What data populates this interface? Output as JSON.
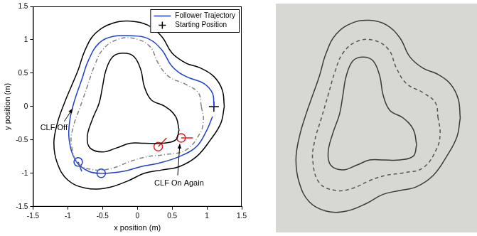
{
  "chart_data": [
    {
      "type": "line",
      "x_label": "x position (m)",
      "y_label": "y position (m)",
      "xlim": [
        -1.5,
        1.5
      ],
      "xticks": [
        -1.5,
        -1,
        -0.5,
        0,
        0.5,
        1,
        1.5
      ],
      "ylim": [
        -1.5,
        1.5
      ],
      "yticks": [
        -1.5,
        -1,
        -0.5,
        0,
        0.5,
        1,
        1.5
      ],
      "grid": false,
      "legend": "upper right",
      "series": [
        {
          "color": "#000000",
          "line_style": "solid",
          "marker": "none",
          "points": [
            [
              1.25,
              0.0
            ],
            [
              1.22,
              0.25
            ],
            [
              1.1,
              0.45
            ],
            [
              0.9,
              0.58
            ],
            [
              0.7,
              0.65
            ],
            [
              0.5,
              0.8
            ],
            [
              0.35,
              1.05
            ],
            [
              0.15,
              1.22
            ],
            [
              -0.1,
              1.28
            ],
            [
              -0.35,
              1.25
            ],
            [
              -0.6,
              1.1
            ],
            [
              -0.75,
              0.85
            ],
            [
              -0.85,
              0.55
            ],
            [
              -0.95,
              0.3
            ],
            [
              -1.05,
              0.05
            ],
            [
              -1.15,
              -0.25
            ],
            [
              -1.2,
              -0.55
            ],
            [
              -1.15,
              -0.85
            ],
            [
              -1.0,
              -1.1
            ],
            [
              -0.75,
              -1.22
            ],
            [
              -0.45,
              -1.22
            ],
            [
              -0.15,
              -1.12
            ],
            [
              0.1,
              -1.0
            ],
            [
              0.35,
              -0.95
            ],
            [
              0.6,
              -0.9
            ],
            [
              0.85,
              -0.75
            ],
            [
              1.05,
              -0.5
            ],
            [
              1.2,
              -0.25
            ],
            [
              1.25,
              0.0
            ]
          ]
        },
        {
          "color": "#000000",
          "line_style": "solid",
          "marker": "none",
          "points": [
            [
              0.6,
              -0.35
            ],
            [
              0.55,
              -0.15
            ],
            [
              0.4,
              0.0
            ],
            [
              0.2,
              0.1
            ],
            [
              0.1,
              0.3
            ],
            [
              0.05,
              0.55
            ],
            [
              -0.05,
              0.75
            ],
            [
              -0.2,
              0.8
            ],
            [
              -0.35,
              0.75
            ],
            [
              -0.45,
              0.55
            ],
            [
              -0.5,
              0.3
            ],
            [
              -0.55,
              0.05
            ],
            [
              -0.65,
              -0.2
            ],
            [
              -0.72,
              -0.45
            ],
            [
              -0.68,
              -0.62
            ],
            [
              -0.5,
              -0.68
            ],
            [
              -0.3,
              -0.62
            ],
            [
              -0.1,
              -0.55
            ],
            [
              0.1,
              -0.55
            ],
            [
              0.35,
              -0.55
            ],
            [
              0.55,
              -0.5
            ],
            [
              0.6,
              -0.35
            ]
          ]
        },
        {
          "color": "#808080",
          "line_style": "dashdot",
          "marker": "none",
          "points": [
            [
              0.92,
              0.0
            ],
            [
              0.88,
              0.2
            ],
            [
              0.7,
              0.33
            ],
            [
              0.45,
              0.45
            ],
            [
              0.3,
              0.65
            ],
            [
              0.18,
              0.9
            ],
            [
              -0.05,
              1.02
            ],
            [
              -0.3,
              1.0
            ],
            [
              -0.5,
              0.85
            ],
            [
              -0.62,
              0.6
            ],
            [
              -0.72,
              0.3
            ],
            [
              -0.82,
              0.0
            ],
            [
              -0.92,
              -0.3
            ],
            [
              -0.95,
              -0.55
            ],
            [
              -0.85,
              -0.85
            ],
            [
              -0.6,
              -0.95
            ],
            [
              -0.35,
              -0.92
            ],
            [
              -0.1,
              -0.82
            ],
            [
              0.15,
              -0.75
            ],
            [
              0.4,
              -0.72
            ],
            [
              0.7,
              -0.65
            ],
            [
              0.9,
              -0.4
            ],
            [
              0.95,
              -0.2
            ],
            [
              0.92,
              0.0
            ]
          ]
        },
        {
          "name": "Follower Trajectory",
          "color": "#1f3fd0",
          "line_style": "solid",
          "marker": "none",
          "points": [
            [
              1.1,
              0.0
            ],
            [
              1.08,
              0.2
            ],
            [
              0.95,
              0.35
            ],
            [
              0.7,
              0.45
            ],
            [
              0.5,
              0.6
            ],
            [
              0.35,
              0.85
            ],
            [
              0.15,
              1.02
            ],
            [
              -0.1,
              1.06
            ],
            [
              -0.35,
              1.05
            ],
            [
              -0.55,
              0.95
            ],
            [
              -0.7,
              0.7
            ],
            [
              -0.8,
              0.4
            ],
            [
              -0.9,
              0.1
            ],
            [
              -0.97,
              -0.2
            ],
            [
              -0.98,
              -0.5
            ],
            [
              -0.88,
              -0.82
            ],
            [
              -0.7,
              -0.97
            ],
            [
              -0.5,
              -1.0
            ],
            [
              -0.2,
              -0.97
            ],
            [
              0.05,
              -0.9
            ],
            [
              0.3,
              -0.85
            ],
            [
              0.6,
              -0.75
            ],
            [
              0.85,
              -0.6
            ],
            [
              1.0,
              -0.35
            ],
            [
              1.08,
              -0.15
            ]
          ]
        },
        {
          "name": "Starting Position",
          "color": "#000000",
          "line_style": "none",
          "marker": "plus",
          "points": [
            [
              1.1,
              0.0
            ]
          ]
        },
        {
          "color": "#1f3fd0",
          "line_style": "none",
          "marker": "circle",
          "points": [
            [
              -0.85,
              -0.83
            ],
            [
              -0.52,
              -1.0
            ]
          ]
        },
        {
          "color": "#1f3fd0",
          "line_style": "solid",
          "marker": "none",
          "points": [
            [
              -0.85,
              -0.83
            ],
            [
              -0.8,
              -0.97
            ]
          ]
        },
        {
          "color": "#e02020",
          "line_style": "none",
          "marker": "circle",
          "points": [
            [
              0.3,
              -0.6
            ],
            [
              0.63,
              -0.47
            ]
          ]
        },
        {
          "color": "#e02020",
          "line_style": "solid",
          "marker": "none",
          "points": [
            [
              0.3,
              -0.6
            ],
            [
              0.42,
              -0.47
            ]
          ]
        },
        {
          "color": "#e02020",
          "line_style": "solid",
          "marker": "none",
          "points": [
            [
              0.63,
              -0.47
            ],
            [
              0.8,
              -0.47
            ]
          ]
        }
      ],
      "annotations": [
        {
          "text": "CLF Off",
          "x": -1.2,
          "y": -0.32,
          "arrow": [
            [
              -1.05,
              -0.22
            ],
            [
              -0.93,
              -0.03
            ]
          ]
        },
        {
          "text": "CLF On Again",
          "x": 0.6,
          "y": -1.15,
          "arrow": [
            [
              0.58,
              -1.03
            ],
            [
              0.61,
              -0.56
            ]
          ]
        }
      ]
    },
    {
      "type": "line",
      "tick_labels": false,
      "grid": false,
      "xlim": [
        -1.5,
        1.5
      ],
      "ylim": [
        -1.5,
        1.5
      ],
      "series": [
        {
          "color": "#3a3a3a",
          "line_style": "solid",
          "marker": "none",
          "points": [
            [
              1.25,
              0.0
            ],
            [
              1.22,
              0.25
            ],
            [
              1.1,
              0.45
            ],
            [
              0.9,
              0.58
            ],
            [
              0.7,
              0.65
            ],
            [
              0.5,
              0.8
            ],
            [
              0.35,
              1.05
            ],
            [
              0.15,
              1.22
            ],
            [
              -0.1,
              1.28
            ],
            [
              -0.35,
              1.25
            ],
            [
              -0.6,
              1.1
            ],
            [
              -0.75,
              0.85
            ],
            [
              -0.85,
              0.55
            ],
            [
              -0.95,
              0.3
            ],
            [
              -1.05,
              0.05
            ],
            [
              -1.15,
              -0.25
            ],
            [
              -1.2,
              -0.55
            ],
            [
              -1.15,
              -0.85
            ],
            [
              -1.0,
              -1.1
            ],
            [
              -0.75,
              -1.22
            ],
            [
              -0.45,
              -1.22
            ],
            [
              -0.15,
              -1.12
            ],
            [
              0.1,
              -1.0
            ],
            [
              0.35,
              -0.95
            ],
            [
              0.6,
              -0.9
            ],
            [
              0.85,
              -0.75
            ],
            [
              1.05,
              -0.5
            ],
            [
              1.2,
              -0.25
            ],
            [
              1.25,
              0.0
            ]
          ]
        },
        {
          "color": "#3a3a3a",
          "line_style": "solid",
          "marker": "none",
          "points": [
            [
              0.6,
              -0.35
            ],
            [
              0.55,
              -0.15
            ],
            [
              0.4,
              0.0
            ],
            [
              0.2,
              0.1
            ],
            [
              0.1,
              0.3
            ],
            [
              0.05,
              0.55
            ],
            [
              -0.05,
              0.75
            ],
            [
              -0.2,
              0.8
            ],
            [
              -0.35,
              0.75
            ],
            [
              -0.45,
              0.55
            ],
            [
              -0.5,
              0.3
            ],
            [
              -0.55,
              0.05
            ],
            [
              -0.65,
              -0.2
            ],
            [
              -0.72,
              -0.45
            ],
            [
              -0.68,
              -0.62
            ],
            [
              -0.5,
              -0.68
            ],
            [
              -0.3,
              -0.62
            ],
            [
              -0.1,
              -0.55
            ],
            [
              0.1,
              -0.55
            ],
            [
              0.35,
              -0.55
            ],
            [
              0.55,
              -0.5
            ],
            [
              0.6,
              -0.35
            ]
          ]
        },
        {
          "color": "#555555",
          "line_style": "dashed",
          "marker": "none",
          "points": [
            [
              0.92,
              0.0
            ],
            [
              0.88,
              0.2
            ],
            [
              0.7,
              0.33
            ],
            [
              0.45,
              0.45
            ],
            [
              0.3,
              0.65
            ],
            [
              0.18,
              0.9
            ],
            [
              -0.05,
              1.02
            ],
            [
              -0.3,
              1.0
            ],
            [
              -0.5,
              0.85
            ],
            [
              -0.62,
              0.6
            ],
            [
              -0.72,
              0.3
            ],
            [
              -0.82,
              0.0
            ],
            [
              -0.92,
              -0.3
            ],
            [
              -0.95,
              -0.55
            ],
            [
              -0.85,
              -0.85
            ],
            [
              -0.6,
              -0.95
            ],
            [
              -0.35,
              -0.92
            ],
            [
              -0.1,
              -0.82
            ],
            [
              0.15,
              -0.75
            ],
            [
              0.4,
              -0.72
            ],
            [
              0.7,
              -0.65
            ],
            [
              0.9,
              -0.4
            ],
            [
              0.95,
              -0.2
            ],
            [
              0.92,
              0.0
            ]
          ]
        }
      ]
    }
  ]
}
